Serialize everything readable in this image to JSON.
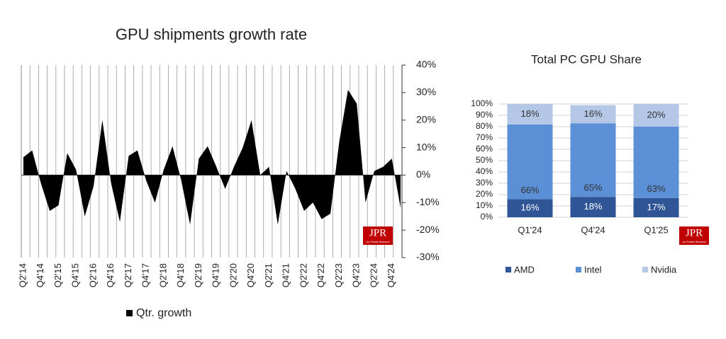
{
  "chart_data": [
    {
      "type": "area",
      "title": "GPU shipments growth rate",
      "categories": [
        "Q2'14",
        null,
        "Q4'14",
        null,
        "Q2'15",
        null,
        "Q4'15",
        null,
        "Q2'16",
        null,
        "Q4'16",
        null,
        "Q2'17",
        null,
        "Q4'17",
        null,
        "Q2'18",
        null,
        "Q4'18",
        null,
        "Q2'19",
        null,
        "Q4'19",
        null,
        "Q2'20",
        null,
        "Q4'20",
        null,
        "Q2'21",
        null,
        "Q4'21",
        null,
        "Q2'22",
        null,
        "Q4'22",
        null,
        "Q2'23",
        null,
        "Q4'23",
        null,
        "Q2'24",
        null,
        "Q4'24",
        null
      ],
      "series": [
        {
          "name": "Qtr. growth",
          "color": "#000000",
          "values": [
            6.5,
            9,
            -3,
            -13,
            -11,
            8,
            2,
            -15,
            -4,
            20,
            -3,
            -17,
            7,
            9,
            -2,
            -10,
            2,
            10.5,
            -2,
            -18,
            6,
            10.5,
            3,
            -5,
            3,
            10,
            20,
            0,
            3,
            -18,
            1.5,
            -5,
            -13,
            -10,
            -16,
            -14,
            12,
            31,
            26,
            -10,
            1.5,
            3,
            6,
            -12
          ]
        }
      ],
      "ylim": [
        -30,
        40
      ],
      "yticks": [
        {
          "value": 40,
          "label": "40%"
        },
        {
          "value": 30,
          "label": "30%"
        },
        {
          "value": 20,
          "label": "20%"
        },
        {
          "value": 10,
          "label": "10%"
        },
        {
          "value": 0,
          "label": "0%"
        },
        {
          "value": -10,
          "label": "-10%"
        },
        {
          "value": -20,
          "label": "-20%"
        },
        {
          "value": -30,
          "label": "-30%"
        }
      ],
      "logo": "JPR",
      "logo_sub": "Jon Peddie Research"
    },
    {
      "type": "bar",
      "stacked": true,
      "title": "Total PC GPU Share",
      "categories": [
        "Q1'24",
        "Q4'24",
        "Q1'25"
      ],
      "series": [
        {
          "name": "AMD",
          "color": "#2f5597",
          "values": [
            16,
            18,
            17
          ],
          "value_labels": [
            "16%",
            "18%",
            "17%"
          ]
        },
        {
          "name": "Intel",
          "color": "#5b8fd6",
          "values": [
            66,
            65,
            63
          ],
          "value_labels": [
            "66%",
            "65%",
            "63%"
          ]
        },
        {
          "name": "Nvidia",
          "color": "#b4c7e7",
          "values": [
            18,
            16,
            20
          ],
          "value_labels": [
            "18%",
            "16%",
            "20%"
          ]
        }
      ],
      "ylim": [
        0,
        100
      ],
      "yticks": [
        {
          "value": 0,
          "label": "0%"
        },
        {
          "value": 10,
          "label": "10%"
        },
        {
          "value": 20,
          "label": "20%"
        },
        {
          "value": 30,
          "label": "30%"
        },
        {
          "value": 40,
          "label": "40%"
        },
        {
          "value": 50,
          "label": "50%"
        },
        {
          "value": 60,
          "label": "60%"
        },
        {
          "value": 70,
          "label": "70%"
        },
        {
          "value": 80,
          "label": "80%"
        },
        {
          "value": 90,
          "label": "90%"
        },
        {
          "value": 100,
          "label": "100%"
        }
      ],
      "grid": true,
      "logo": "JPR",
      "logo_sub": "Jon Peddie Research"
    }
  ]
}
